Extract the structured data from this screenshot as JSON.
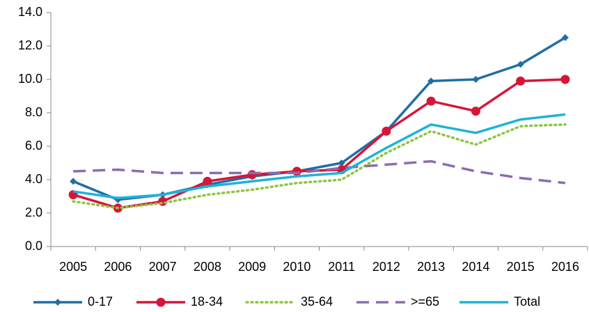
{
  "chart_data": {
    "type": "line",
    "categories": [
      "2005",
      "2006",
      "2007",
      "2008",
      "2009",
      "2010",
      "2011",
      "2012",
      "2013",
      "2014",
      "2015",
      "2016"
    ],
    "series": [
      {
        "name": "0-17",
        "color": "#1f6fa3",
        "marker": "diamond",
        "linestyle": "solid",
        "values": [
          3.9,
          2.8,
          3.1,
          3.7,
          4.2,
          4.5,
          5.0,
          6.9,
          9.9,
          10.0,
          10.9,
          12.5
        ]
      },
      {
        "name": "18-34",
        "color": "#d7153a",
        "marker": "circle",
        "linestyle": "solid",
        "values": [
          3.1,
          2.3,
          2.7,
          3.9,
          4.3,
          4.5,
          4.6,
          6.9,
          8.7,
          8.1,
          9.9,
          10.0
        ]
      },
      {
        "name": "35-64",
        "color": "#8cc63f",
        "marker": "none",
        "linestyle": "dotted",
        "values": [
          2.7,
          2.3,
          2.6,
          3.1,
          3.4,
          3.8,
          4.0,
          5.6,
          6.9,
          6.1,
          7.2,
          7.3
        ]
      },
      {
        "name": ">=65",
        "color": "#8e6bb0",
        "marker": "none",
        "linestyle": "dashed",
        "values": [
          4.5,
          4.6,
          4.4,
          4.4,
          4.4,
          4.4,
          4.7,
          4.9,
          5.1,
          4.5,
          4.1,
          3.8
        ]
      },
      {
        "name": "Total",
        "color": "#1fb3d6",
        "marker": "none",
        "linestyle": "solid",
        "values": [
          3.3,
          2.9,
          3.1,
          3.6,
          3.9,
          4.2,
          4.4,
          5.9,
          7.3,
          6.8,
          7.6,
          7.9
        ]
      }
    ],
    "ylim": [
      0,
      14
    ],
    "yticks": [
      {
        "value": 0,
        "label": "0.0"
      },
      {
        "value": 2,
        "label": "2.0"
      },
      {
        "value": 4,
        "label": "4.0"
      },
      {
        "value": 6,
        "label": "6.0"
      },
      {
        "value": 8,
        "label": "8.0"
      },
      {
        "value": 10,
        "label": "10.0"
      },
      {
        "value": 12,
        "label": "12.0"
      },
      {
        "value": 14,
        "label": "14.0"
      }
    ],
    "grid": false,
    "legend": "bottom"
  }
}
